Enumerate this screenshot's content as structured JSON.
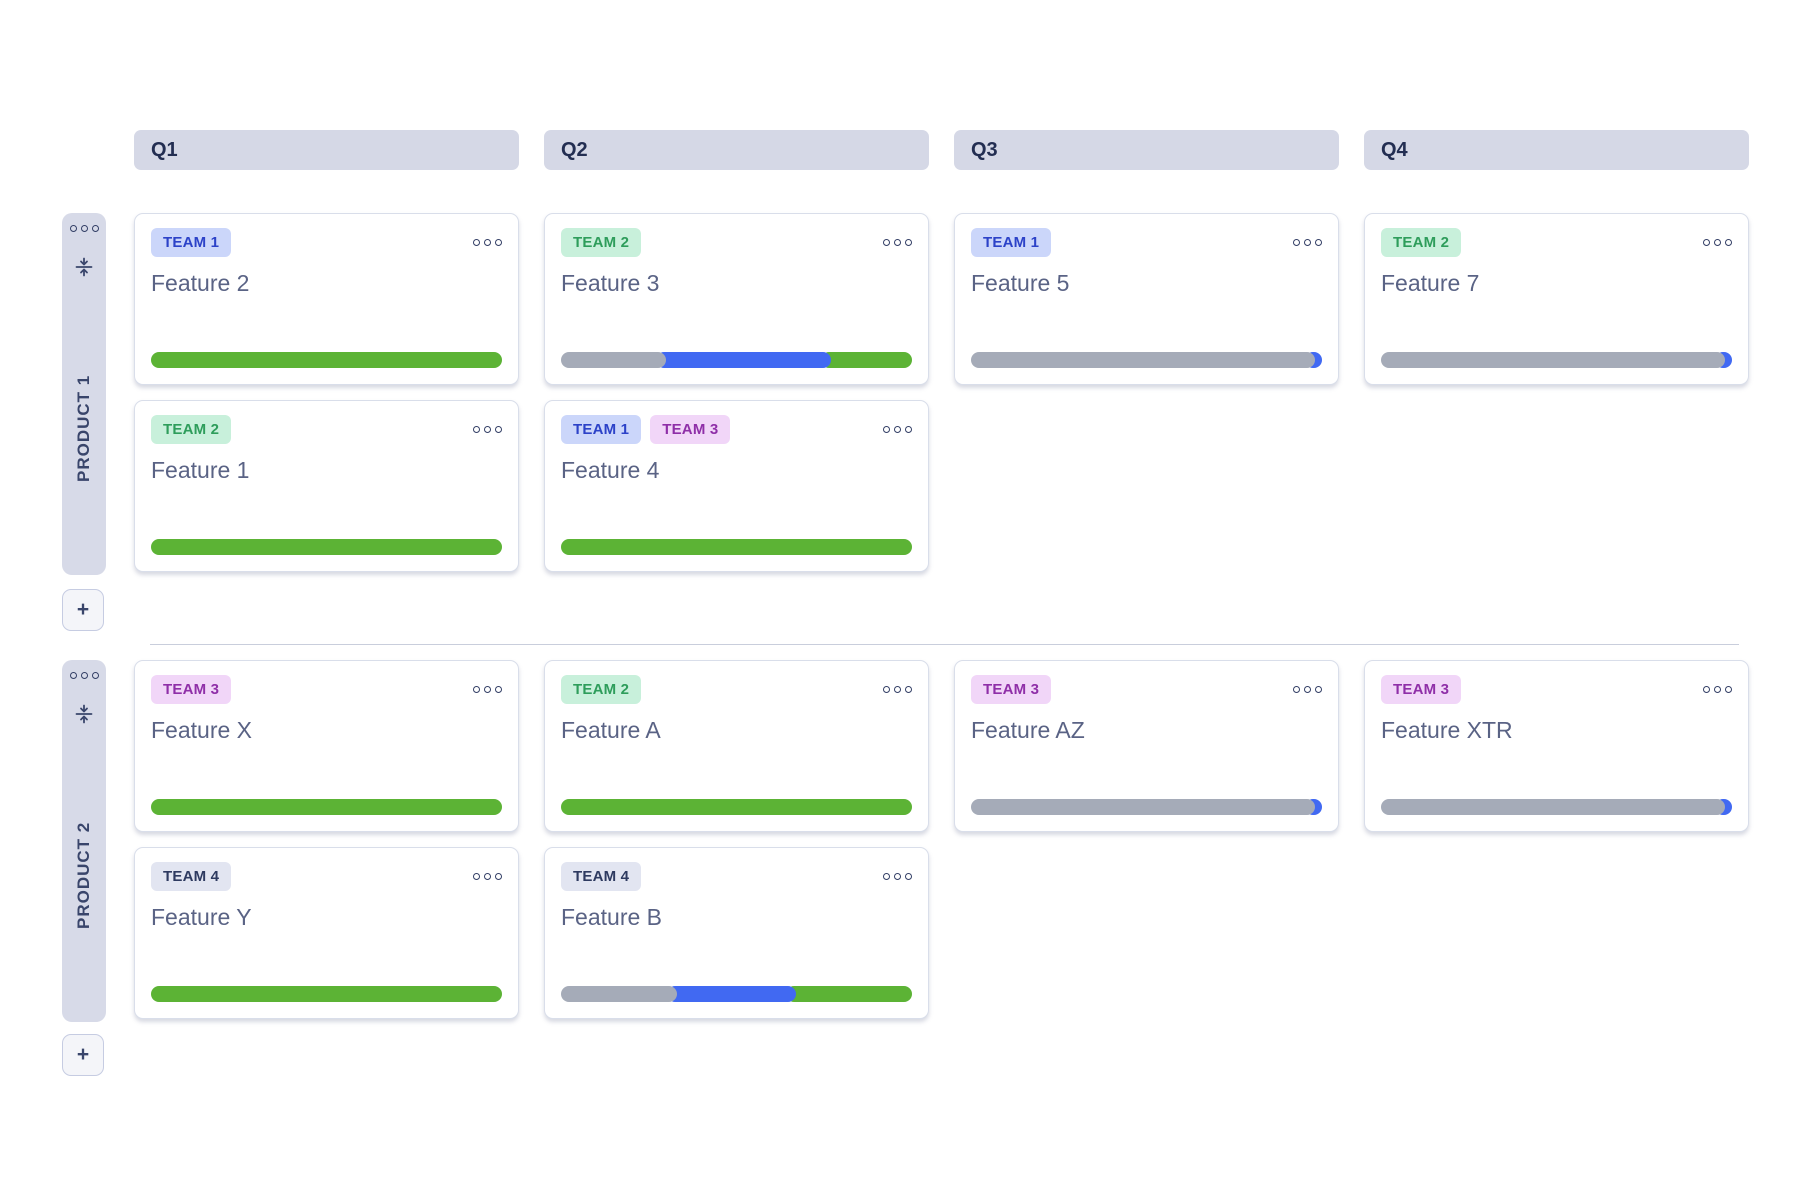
{
  "quarters": [
    {
      "label": "Q1"
    },
    {
      "label": "Q2"
    },
    {
      "label": "Q3"
    },
    {
      "label": "Q4"
    }
  ],
  "teams": {
    "team1": {
      "label": "TEAM 1",
      "bg": "#CBD6FA",
      "fg": "#2C42C8"
    },
    "team2": {
      "label": "TEAM 2",
      "bg": "#C8F0DB",
      "fg": "#2E9D5B"
    },
    "team3": {
      "label": "TEAM 3",
      "bg": "#F1D6F8",
      "fg": "#8F2FA8"
    },
    "team4": {
      "label": "TEAM 4",
      "bg": "#E2E5F1",
      "fg": "#2E3A60"
    }
  },
  "status_colors": {
    "done": "#5CB335",
    "in_progress": "#4169F2",
    "planned": "#A5ABB8"
  },
  "icons": {
    "more-options-icon": "three small outlined circles",
    "collapse-lane-icon": "two arrows pointing to a horizontal line",
    "add-lane-icon": "+"
  },
  "products": [
    {
      "name": "PRODUCT 1",
      "add_button_label": "+",
      "cards": [
        {
          "title": "Feature 2",
          "quarter": "Q1",
          "teams": [
            "team1"
          ],
          "progress": [
            {
              "status": "done",
              "pct": 100
            }
          ]
        },
        {
          "title": "Feature 3",
          "quarter": "Q2",
          "teams": [
            "team2"
          ],
          "progress": [
            {
              "status": "planned",
              "pct": 30
            },
            {
              "status": "in_progress",
              "pct": 47
            },
            {
              "status": "done",
              "pct": 23
            }
          ]
        },
        {
          "title": "Feature 5",
          "quarter": "Q3",
          "teams": [
            "team1"
          ],
          "progress": [
            {
              "status": "planned",
              "pct": 98
            },
            {
              "status": "in_progress",
              "pct": 2
            }
          ]
        },
        {
          "title": "Feature 7",
          "quarter": "Q4",
          "teams": [
            "team2"
          ],
          "progress": [
            {
              "status": "planned",
              "pct": 98
            },
            {
              "status": "in_progress",
              "pct": 2
            }
          ]
        },
        {
          "title": "Feature 1",
          "quarter": "Q1",
          "teams": [
            "team2"
          ],
          "progress": [
            {
              "status": "done",
              "pct": 100
            }
          ]
        },
        {
          "title": "Feature 4",
          "quarter": "Q2",
          "teams": [
            "team1",
            "team3"
          ],
          "progress": [
            {
              "status": "done",
              "pct": 100
            }
          ]
        }
      ]
    },
    {
      "name": "PRODUCT 2",
      "add_button_label": "+",
      "cards": [
        {
          "title": "Feature X",
          "quarter": "Q1",
          "teams": [
            "team3"
          ],
          "progress": [
            {
              "status": "done",
              "pct": 100
            }
          ]
        },
        {
          "title": "Feature A",
          "quarter": "Q2",
          "teams": [
            "team2"
          ],
          "progress": [
            {
              "status": "done",
              "pct": 100
            }
          ]
        },
        {
          "title": "Feature AZ",
          "quarter": "Q3",
          "teams": [
            "team3"
          ],
          "progress": [
            {
              "status": "planned",
              "pct": 98
            },
            {
              "status": "in_progress",
              "pct": 2
            }
          ]
        },
        {
          "title": "Feature XTR",
          "quarter": "Q4",
          "teams": [
            "team3"
          ],
          "progress": [
            {
              "status": "planned",
              "pct": 98
            },
            {
              "status": "in_progress",
              "pct": 2
            }
          ]
        },
        {
          "title": "Feature Y",
          "quarter": "Q1",
          "teams": [
            "team4"
          ],
          "progress": [
            {
              "status": "done",
              "pct": 100
            }
          ]
        },
        {
          "title": "Feature B",
          "quarter": "Q2",
          "teams": [
            "team4"
          ],
          "progress": [
            {
              "status": "planned",
              "pct": 33
            },
            {
              "status": "in_progress",
              "pct": 34
            },
            {
              "status": "done",
              "pct": 33
            }
          ]
        }
      ]
    }
  ]
}
